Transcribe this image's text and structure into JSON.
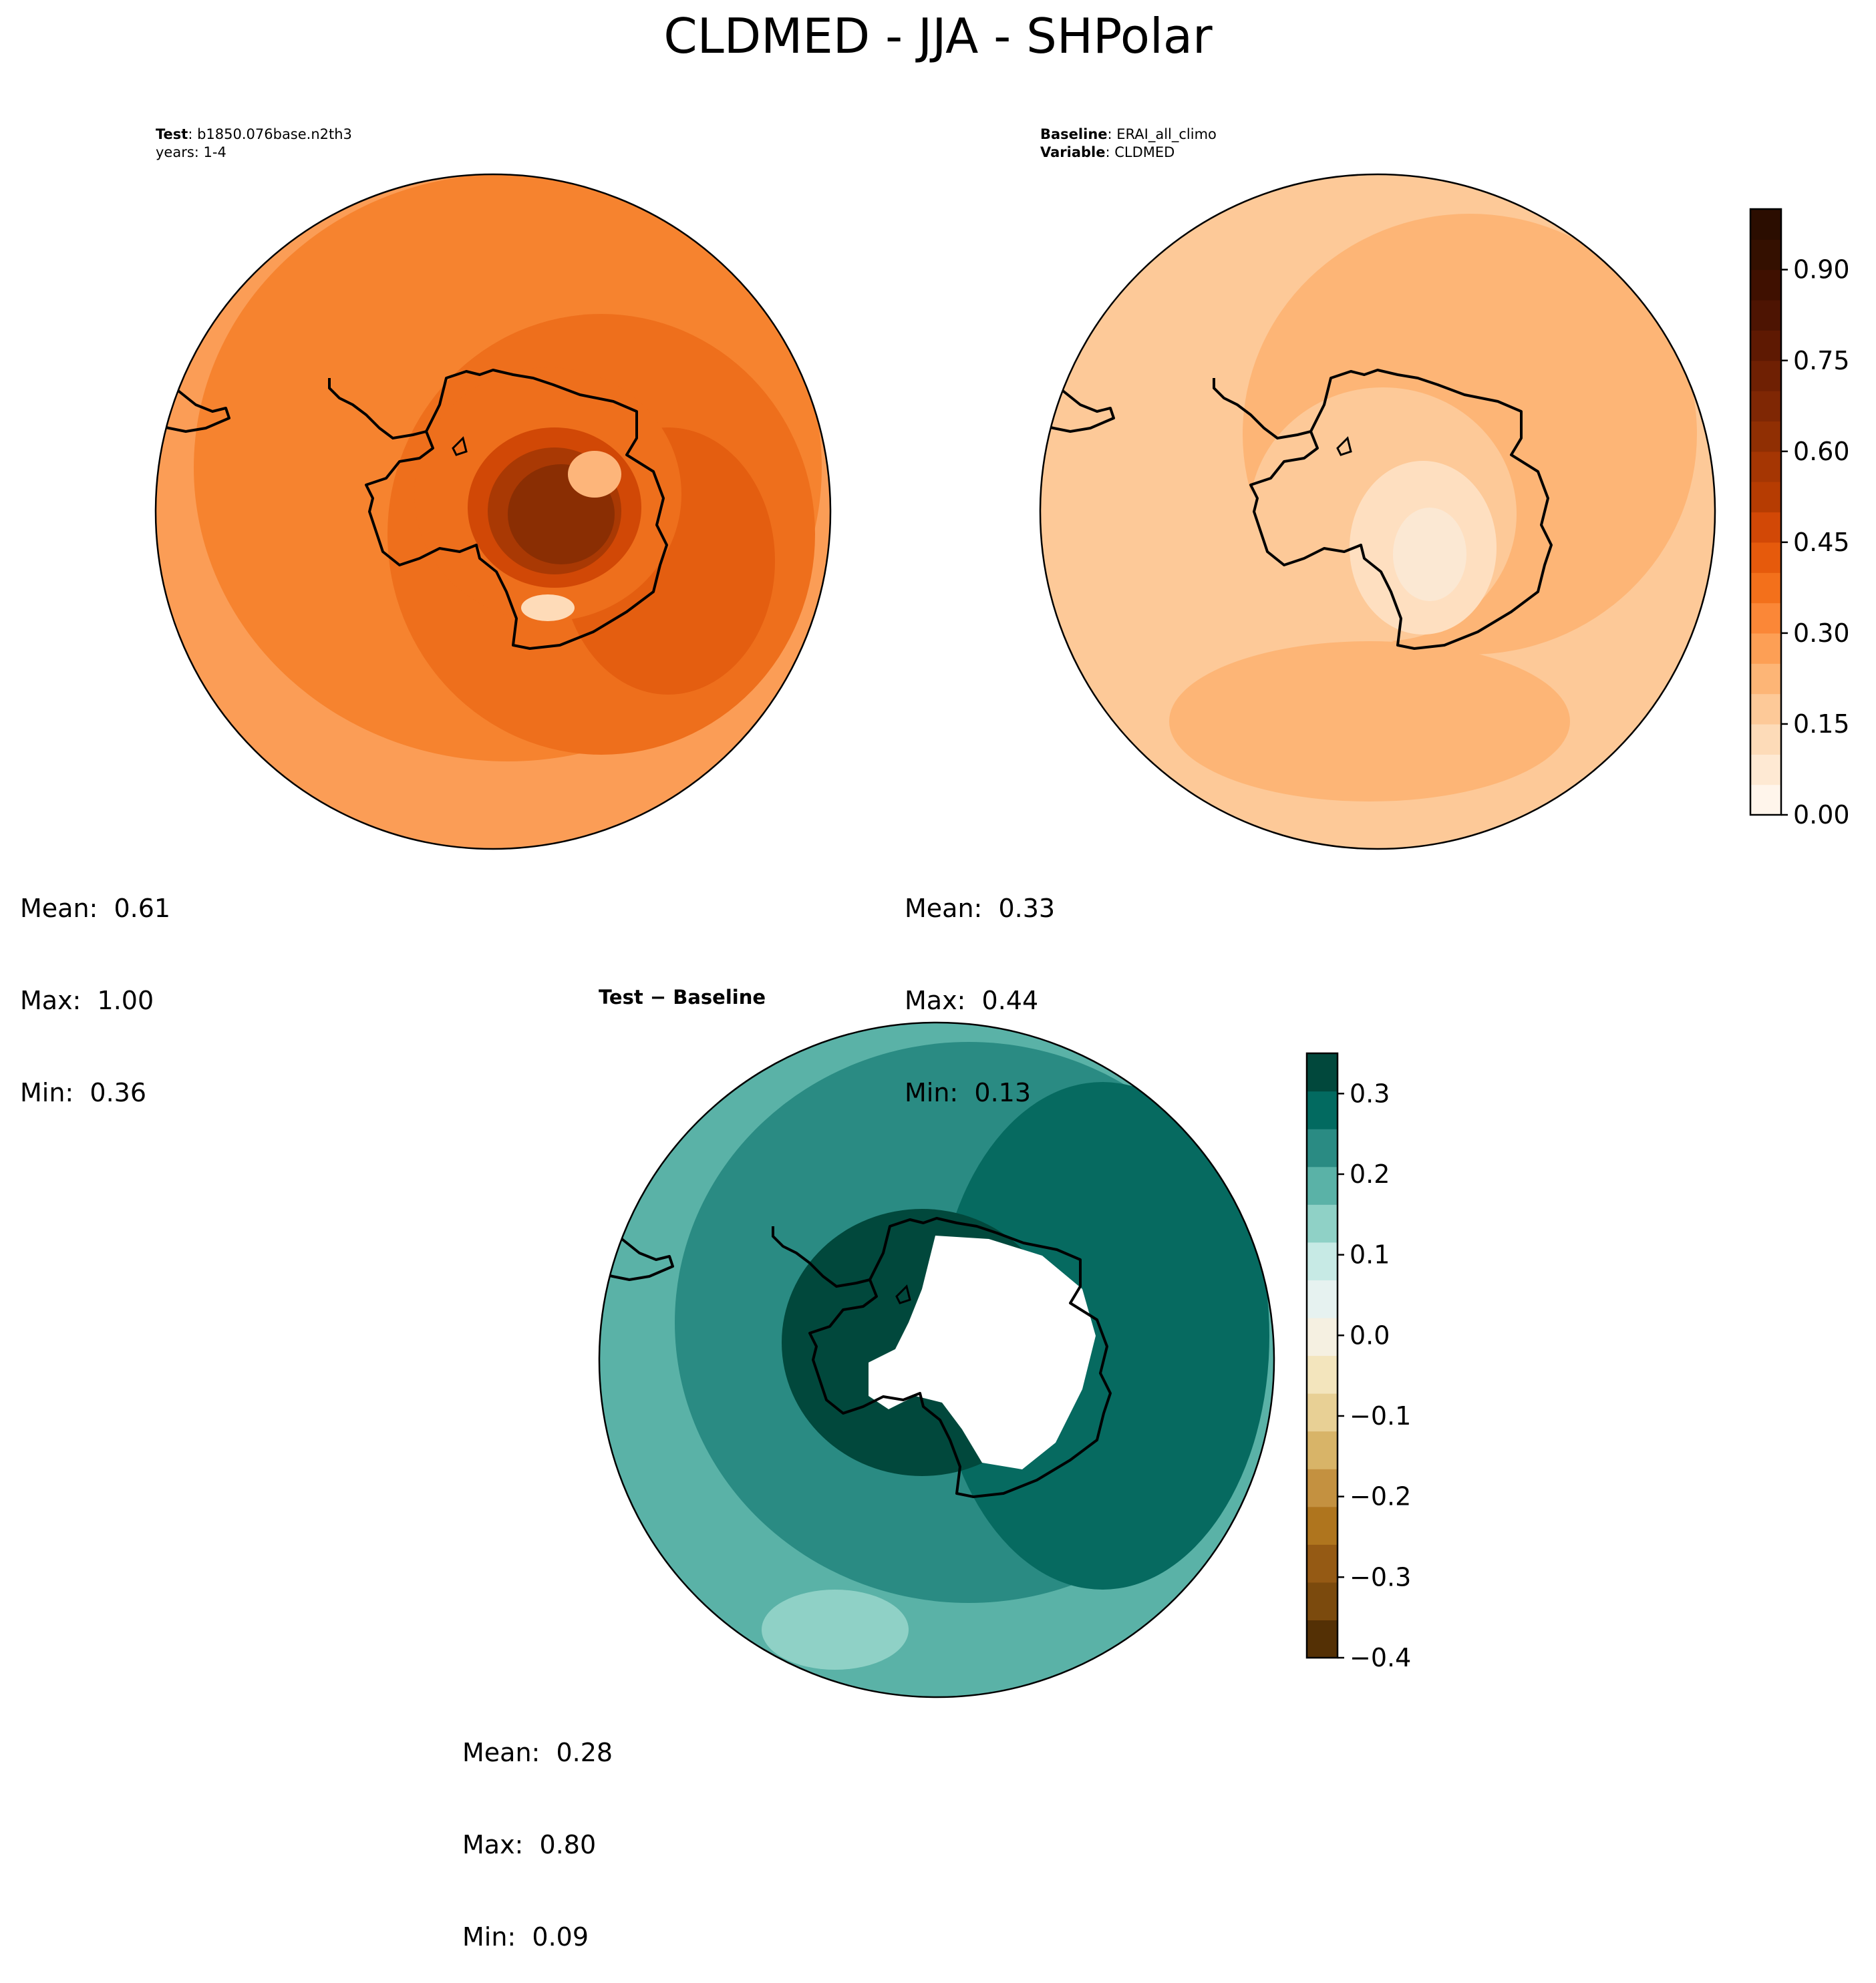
{
  "figure": {
    "title": "CLDMED - JJA - SHPolar"
  },
  "panels": {
    "test": {
      "header_line1_bold": "Test",
      "header_line1_text": ": b1850.076base.n2th3",
      "header_line2": "years: 1-4",
      "stats": {
        "mean": "Mean:  0.61",
        "max": "Max:  1.00",
        "min": "Min:  0.36"
      }
    },
    "baseline": {
      "header_line1_bold": "Baseline",
      "header_line1_text": ": ERAI_all_climo",
      "header_line2_bold": "Variable",
      "header_line2_text": ": CLDMED",
      "stats": {
        "mean": "Mean:  0.33",
        "max": "Max:  0.44",
        "min": "Min:  0.13"
      }
    },
    "diff": {
      "title": "Test − Baseline",
      "stats": {
        "mean": "Mean:  0.28",
        "max": "Max:  0.80",
        "min": "Min:  0.09"
      }
    }
  },
  "colorbars": {
    "main": {
      "ticks": [
        "0.00",
        "0.15",
        "0.30",
        "0.45",
        "0.60",
        "0.75",
        "0.90"
      ],
      "tick_values": [
        0.0,
        0.15,
        0.3,
        0.45,
        0.6,
        0.75,
        0.9
      ],
      "range": [
        0.0,
        1.0
      ],
      "colors": [
        "#fff5eb",
        "#fee9d3",
        "#fddbb8",
        "#fdc998",
        "#fdb576",
        "#fd9f55",
        "#fb8737",
        "#f3701b",
        "#e65a0c",
        "#d24806",
        "#b63c02",
        "#a53603",
        "#902f03",
        "#7f2704",
        "#6f2003",
        "#5e1902",
        "#4d1402",
        "#3f1000",
        "#341000",
        "#2b0d00"
      ],
      "colors_used": 13
    },
    "diff": {
      "ticks": [
        "0.3",
        "0.2",
        "0.1",
        "0.0",
        "−0.1",
        "−0.2",
        "−0.3",
        "−0.4"
      ],
      "tick_values": [
        0.3,
        0.2,
        0.1,
        0.0,
        -0.1,
        -0.2,
        -0.3,
        -0.4
      ],
      "range": [
        -0.4,
        0.35
      ],
      "colors": [
        "#543005",
        "#7b4a0d",
        "#955a14",
        "#af751e",
        "#c49140",
        "#d8b468",
        "#e8d095",
        "#f3e5bd",
        "#f5f0e1",
        "#e6f2f0",
        "#c7eae5",
        "#8fd1c6",
        "#5ab2a7",
        "#2a8b83",
        "#026a60",
        "#01483c"
      ]
    },
    "fill_colors": {
      "test": [
        "#fb9d56",
        "#f6832f",
        "#ee6f1c",
        "#e45e10",
        "#d14806",
        "#a93904",
        "#8a2e03",
        "#fdb57a",
        "#fedbb8"
      ],
      "baseline": [
        "#fdc998",
        "#fdb576",
        "#fedfc0",
        "#fbe8d3"
      ],
      "diff": [
        "#5ab2a7",
        "#2a8b83",
        "#066a60",
        "#8fd1c6",
        "#01483c",
        "#ffffff"
      ]
    }
  }
}
